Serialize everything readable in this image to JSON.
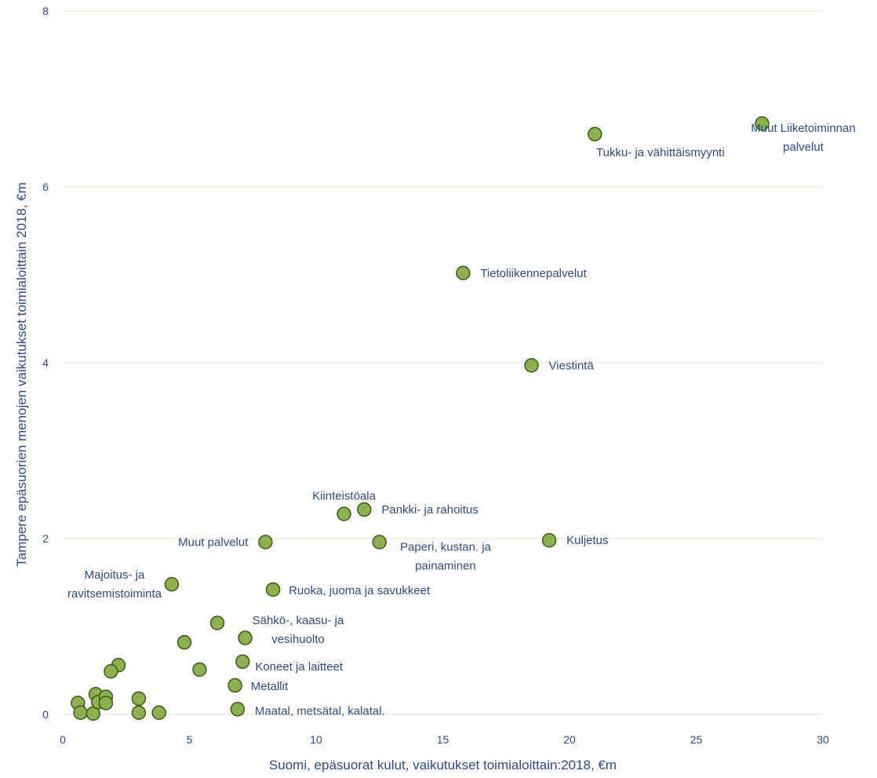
{
  "chart_data": {
    "type": "scatter",
    "xlabel": "Suomi, epäsuorat kulut, vaikutukset toimialoittain:2018, €m",
    "ylabel": "Tampere epäsuorien menojen vaikutukset toimialoittain 2018, €m",
    "xlim": [
      0,
      30
    ],
    "ylim": [
      0,
      8
    ],
    "x_ticks": [
      0,
      5,
      10,
      15,
      20,
      25,
      30
    ],
    "y_ticks": [
      0,
      2,
      4,
      6,
      8
    ],
    "grid": "horizontal",
    "colors": {
      "point_fill": "#8db050",
      "point_stroke": "#3a5a1a",
      "text": "#2e4a7d",
      "grid": "#e6e2c8"
    },
    "points": [
      {
        "x": 27.6,
        "y": 6.72,
        "label": [
          "Muut Liiketoiminnan",
          "palvelut"
        ],
        "anchor": "end"
      },
      {
        "x": 21.0,
        "y": 6.6,
        "label": [
          "Tukku- ja vähittäismyynti"
        ],
        "anchor": "start"
      },
      {
        "x": 15.8,
        "y": 5.02,
        "label": [
          "Tietoliikennepalvelut"
        ],
        "anchor": "start"
      },
      {
        "x": 18.5,
        "y": 3.97,
        "label": [
          "Viestintä"
        ],
        "anchor": "start"
      },
      {
        "x": 11.1,
        "y": 2.28,
        "label": [
          "Kiinteistöala"
        ],
        "anchor": "end"
      },
      {
        "x": 11.9,
        "y": 2.33,
        "label": [
          "Pankki- ja rahoitus"
        ],
        "anchor": "start"
      },
      {
        "x": 8.0,
        "y": 1.96,
        "label": [
          "Muut palvelut"
        ],
        "anchor": "end"
      },
      {
        "x": 12.5,
        "y": 1.96,
        "label": [
          "Paperi, kustan. ja",
          "painaminen"
        ],
        "anchor": "start"
      },
      {
        "x": 19.2,
        "y": 1.98,
        "label": [
          "Kuljetus"
        ],
        "anchor": "start"
      },
      {
        "x": 4.3,
        "y": 1.48,
        "label": [
          "Majoitus- ja",
          "ravitsemistoiminta"
        ],
        "anchor": "end"
      },
      {
        "x": 8.3,
        "y": 1.42,
        "label": [
          "Ruoka, juoma ja savukkeet"
        ],
        "anchor": "start"
      },
      {
        "x": 7.2,
        "y": 0.87,
        "label": [
          "Sähkö-, kaasu- ja",
          "vesihuolto"
        ],
        "anchor": "start"
      },
      {
        "x": 7.1,
        "y": 0.6,
        "label": [
          "Koneet ja laitteet"
        ],
        "anchor": "start"
      },
      {
        "x": 6.8,
        "y": 0.33,
        "label": [
          "Metallit"
        ],
        "anchor": "start"
      },
      {
        "x": 6.9,
        "y": 0.06,
        "label": [
          "Maatal, metsätal,  kalatal."
        ],
        "anchor": "start"
      },
      {
        "x": 6.1,
        "y": 1.04,
        "label": []
      },
      {
        "x": 4.8,
        "y": 0.82,
        "label": []
      },
      {
        "x": 5.4,
        "y": 0.51,
        "label": []
      },
      {
        "x": 2.2,
        "y": 0.56,
        "label": []
      },
      {
        "x": 1.9,
        "y": 0.49,
        "label": []
      },
      {
        "x": 0.6,
        "y": 0.13,
        "label": []
      },
      {
        "x": 0.7,
        "y": 0.02,
        "label": []
      },
      {
        "x": 1.2,
        "y": 0.01,
        "label": []
      },
      {
        "x": 1.3,
        "y": 0.23,
        "label": []
      },
      {
        "x": 1.4,
        "y": 0.14,
        "label": []
      },
      {
        "x": 1.7,
        "y": 0.2,
        "label": []
      },
      {
        "x": 1.7,
        "y": 0.13,
        "label": []
      },
      {
        "x": 3.0,
        "y": 0.18,
        "label": []
      },
      {
        "x": 3.0,
        "y": 0.02,
        "label": []
      },
      {
        "x": 3.8,
        "y": 0.02,
        "label": []
      }
    ]
  }
}
